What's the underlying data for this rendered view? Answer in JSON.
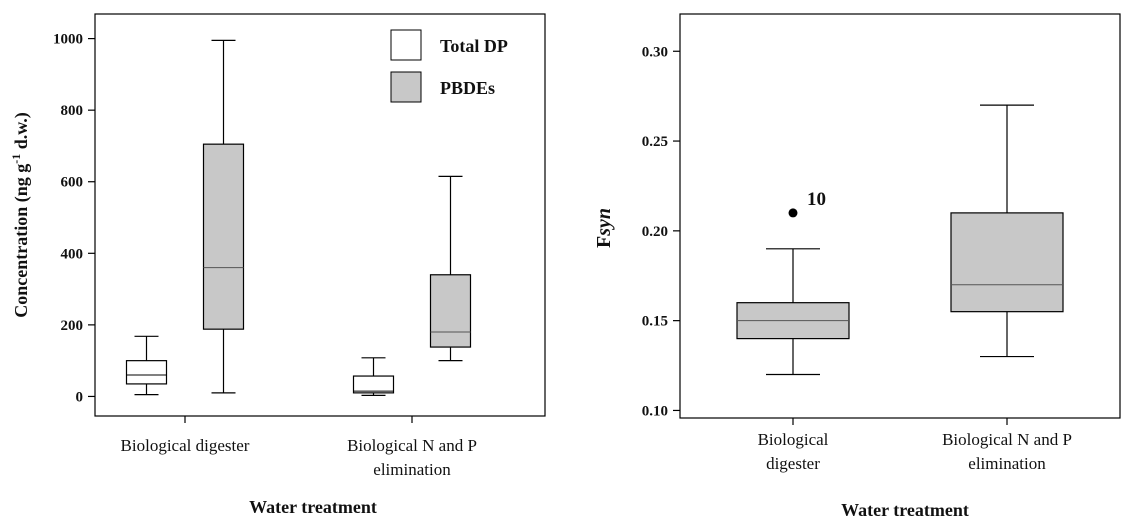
{
  "chart_data": [
    {
      "type": "box",
      "title": "",
      "xlabel": "Water treatment",
      "ylabel": "Concentration (ng g⁻¹ d.w.)",
      "ylim": [
        -20,
        1050
      ],
      "yticks": [
        0,
        200,
        400,
        600,
        800,
        1000
      ],
      "categories": [
        {
          "lines": [
            "Biological digester"
          ]
        },
        {
          "lines": [
            "Biological N and P",
            "elimination"
          ]
        }
      ],
      "legend": {
        "position": "top-right"
      },
      "series": [
        {
          "name": "Total DP",
          "color": "#ffffff",
          "boxes": [
            {
              "min": 5,
              "q1": 35,
              "median": 60,
              "q3": 100,
              "max": 168
            },
            {
              "min": 3,
              "q1": 10,
              "median": 15,
              "q3": 57,
              "max": 108
            }
          ]
        },
        {
          "name": "PBDEs",
          "color": "#c8c8c8",
          "boxes": [
            {
              "min": 10,
              "q1": 188,
              "median": 360,
              "q3": 705,
              "max": 995
            },
            {
              "min": 100,
              "q1": 138,
              "median": 180,
              "q3": 340,
              "max": 615
            }
          ]
        }
      ]
    },
    {
      "type": "box",
      "title": "",
      "xlabel": "Water treatment",
      "ylabel": "Fsyn",
      "ylim": [
        0.09,
        0.31
      ],
      "yticks": [
        "0.10",
        "0.15",
        "0.20",
        "0.25",
        "0.30"
      ],
      "categories": [
        {
          "lines": [
            "Biological",
            "digester"
          ]
        },
        {
          "lines": [
            "Biological N and P",
            "elimination"
          ]
        }
      ],
      "series": [
        {
          "color": "#c8c8c8",
          "boxes": [
            {
              "min": 0.12,
              "q1": 0.14,
              "median": 0.15,
              "q3": 0.16,
              "max": 0.19,
              "outliers": [
                {
                  "value": 0.21,
                  "label": "10"
                }
              ]
            },
            {
              "min": 0.13,
              "q1": 0.155,
              "median": 0.17,
              "q3": 0.21,
              "max": 0.27
            }
          ]
        }
      ]
    }
  ]
}
